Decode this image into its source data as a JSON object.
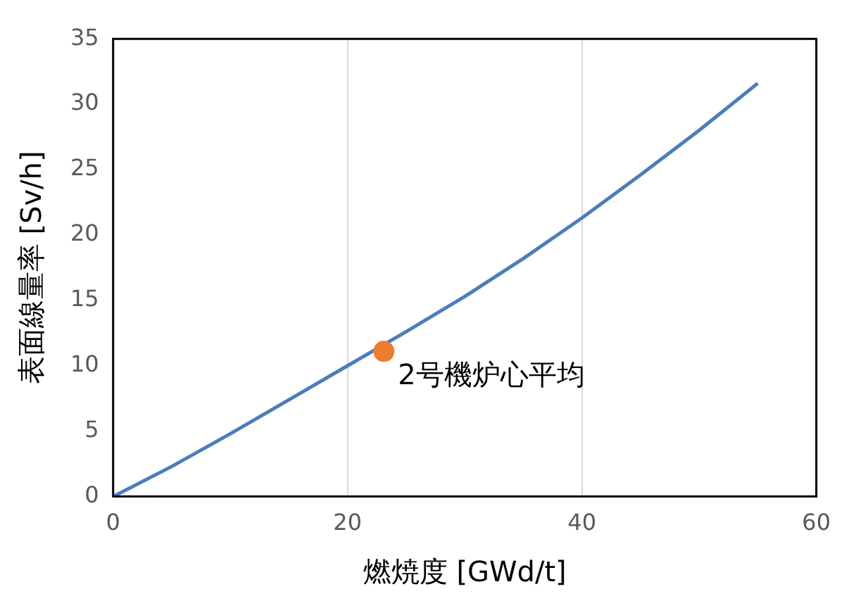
{
  "chart_data": {
    "type": "line",
    "xlabel": "燃焼度 [GWd/t]",
    "ylabel": "表面線量率 [Sv/h]",
    "xlim": [
      0,
      60
    ],
    "xticks": [
      0,
      20,
      40,
      60
    ],
    "ylim": [
      0,
      35
    ],
    "yticks": [
      0,
      5,
      10,
      15,
      20,
      25,
      30,
      35
    ],
    "grid": "x",
    "series": [
      {
        "color": "#4a7ebb",
        "marker": "none",
        "x": [
          0,
          5,
          10,
          15,
          20,
          25,
          30,
          35,
          40,
          45,
          50,
          55
        ],
        "values": [
          0,
          2.3,
          4.8,
          7.4,
          10,
          12.6,
          15.3,
          18.2,
          21.3,
          24.6,
          28,
          31.6
        ]
      },
      {
        "type": "scatter",
        "color": "#ed7d31",
        "marker": "circle",
        "x": [
          23.1
        ],
        "values": [
          11.1
        ]
      }
    ],
    "annotations": [
      {
        "text": "2号機炉心平均",
        "x": 23.1,
        "y": 11.1
      }
    ]
  }
}
